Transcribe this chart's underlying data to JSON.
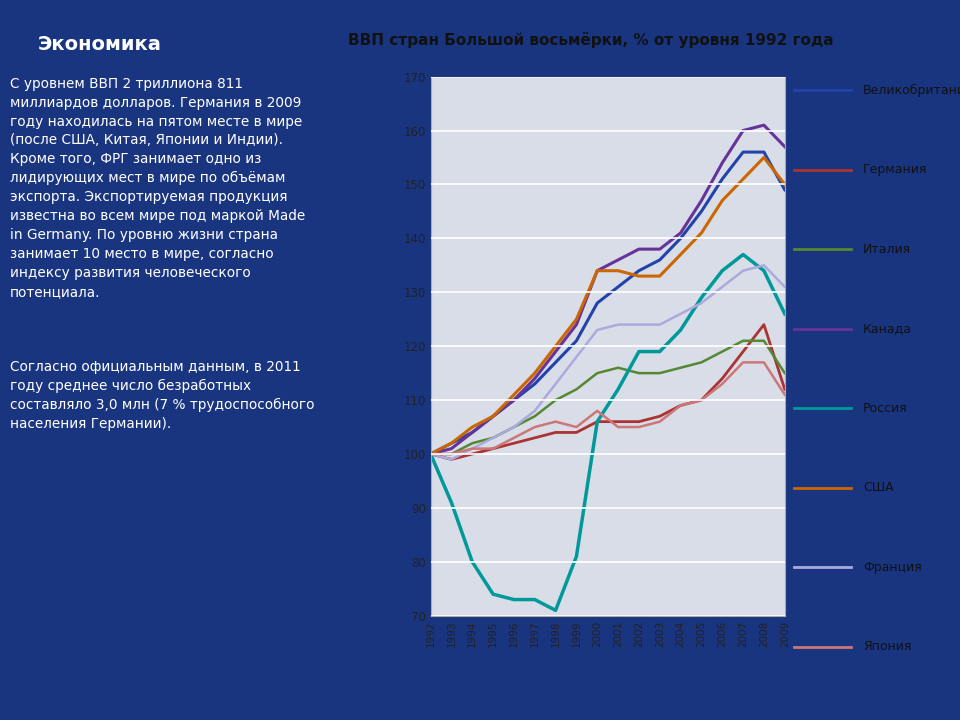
{
  "title": "ВВП стран Большой восьмёрки, % от уровня 1992 года",
  "left_title": "Экономика",
  "left_text1": "С уровнем ВВП 2 триллиона 811\nмиллиардов долларов. Германия в 2009\nгоду находилась на пятом месте в мире\n(после США, Китая, Японии и Индии).\nКроме того, ФРГ занимает одно из\nлидирующих мест в мире по объёмам\nэкспорта. Экспортируемая продукция\nизвестна во всем мире под маркой Made\nin Germany. По уровню жизни страна\nзанимает 10 место в мире, согласно\nиндексу развития человеческого\nпотенциала.",
  "left_text2": "Согласно официальным данным, в 2011\nгоду среднее число безработных\nсоставляло 3,0 млн (7 % трудоспособного\nнаселения Германии).",
  "years": [
    1992,
    1993,
    1994,
    1995,
    1996,
    1997,
    1998,
    1999,
    2000,
    2001,
    2002,
    2003,
    2004,
    2005,
    2006,
    2007,
    2008,
    2009
  ],
  "series": {
    "Великобритания": {
      "color": "#2244aa",
      "data": [
        100,
        102,
        104,
        107,
        110,
        113,
        117,
        121,
        128,
        131,
        134,
        136,
        140,
        145,
        151,
        156,
        156,
        149
      ]
    },
    "Германия": {
      "color": "#aa3333",
      "data": [
        100,
        99,
        100,
        101,
        102,
        103,
        104,
        104,
        106,
        106,
        106,
        107,
        109,
        110,
        114,
        119,
        124,
        112
      ]
    },
    "Италия": {
      "color": "#558833",
      "data": [
        100,
        100,
        102,
        103,
        105,
        107,
        110,
        112,
        115,
        116,
        115,
        115,
        116,
        117,
        119,
        121,
        121,
        115
      ]
    },
    "Канада": {
      "color": "#663399",
      "data": [
        100,
        101,
        104,
        107,
        110,
        114,
        119,
        124,
        134,
        136,
        138,
        138,
        141,
        147,
        154,
        160,
        161,
        157
      ]
    },
    "Россия": {
      "color": "#009999",
      "data": [
        100,
        91,
        80,
        74,
        73,
        73,
        71,
        81,
        106,
        112,
        119,
        119,
        123,
        129,
        134,
        137,
        134,
        126
      ]
    },
    "США": {
      "color": "#cc6600",
      "data": [
        100,
        102,
        105,
        107,
        111,
        115,
        120,
        125,
        134,
        134,
        133,
        133,
        137,
        141,
        147,
        151,
        155,
        150
      ]
    },
    "Франция": {
      "color": "#aaaadd",
      "data": [
        100,
        99,
        101,
        103,
        105,
        108,
        113,
        118,
        123,
        124,
        124,
        124,
        126,
        128,
        131,
        134,
        135,
        131
      ]
    },
    "Япония": {
      "color": "#cc7777",
      "data": [
        100,
        100,
        101,
        101,
        103,
        105,
        106,
        105,
        108,
        105,
        105,
        106,
        109,
        110,
        113,
        117,
        117,
        111
      ]
    }
  },
  "ylim": [
    70,
    170
  ],
  "yticks": [
    70,
    80,
    90,
    100,
    110,
    120,
    130,
    140,
    150,
    160,
    170
  ],
  "bg_color": "#1a3580",
  "chart_outer_bg": "#c8cfe0",
  "chart_inner_bg": "#d8dde8",
  "legend_order": [
    "Великобритания",
    "Германия",
    "Италия",
    "Канада",
    "Россия",
    "США",
    "Франция",
    "Япония"
  ]
}
